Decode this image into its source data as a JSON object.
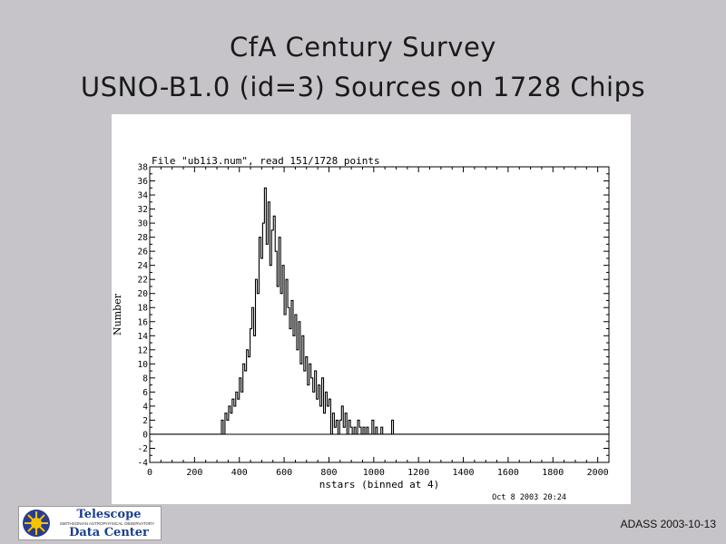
{
  "slide": {
    "title_line1": "CfA Century Survey",
    "title_line2": "USNO-B1.0 (id=3) Sources on 1728 Chips",
    "footer": "ADASS 2003-10-13"
  },
  "logo": {
    "line1": "Telescope",
    "line2": "SMITHSONIAN ASTROPHYSICAL OBSERVATORY",
    "line3": "Data Center",
    "icon": "sun-logo-icon"
  },
  "chart_data": {
    "type": "line",
    "style": "step histogram",
    "title": "File \"ub1i3.num\", read 151/1728 points",
    "xlabel": "nstars (binned at 4)",
    "ylabel": "Number",
    "timestamp": "Oct  8 2003 20:24",
    "xlim": [
      0,
      2050
    ],
    "ylim": [
      -4,
      38
    ],
    "xticks": [
      0,
      200,
      400,
      600,
      800,
      1000,
      1200,
      1400,
      1600,
      1800,
      2000
    ],
    "yticks": [
      -4,
      -2,
      0,
      2,
      4,
      6,
      8,
      10,
      12,
      14,
      16,
      18,
      20,
      22,
      24,
      26,
      28,
      30,
      32,
      34,
      36,
      38
    ],
    "bin_width": 4,
    "series": [
      {
        "x": [
          0,
          320,
          328,
          336,
          344,
          352,
          360,
          368,
          376,
          384,
          392,
          400,
          408,
          416,
          424,
          432,
          440,
          448,
          456,
          464,
          472,
          480,
          488,
          496,
          504,
          512,
          520,
          528,
          536,
          544,
          552,
          560,
          568,
          576,
          584,
          592,
          600,
          608,
          616,
          624,
          632,
          640,
          648,
          656,
          664,
          672,
          680,
          688,
          696,
          704,
          712,
          720,
          728,
          736,
          744,
          752,
          760,
          768,
          776,
          784,
          792,
          800,
          808,
          816,
          824,
          832,
          840,
          848,
          856,
          864,
          872,
          880,
          888,
          896,
          904,
          912,
          920,
          928,
          936,
          944,
          952,
          960,
          968,
          976,
          984,
          992,
          1000,
          1008,
          1016,
          1024,
          1032,
          1040,
          1048,
          1056,
          1064,
          1072,
          1080,
          1088,
          1096,
          1104,
          2050
        ],
        "y": [
          0,
          2,
          0,
          3,
          2,
          4,
          3,
          5,
          4,
          6,
          5,
          8,
          6,
          10,
          9,
          12,
          11,
          15,
          18,
          14,
          22,
          20,
          28,
          25,
          30,
          35,
          27,
          33,
          24,
          29,
          31,
          26,
          21,
          28,
          20,
          24,
          17,
          22,
          18,
          15,
          19,
          14,
          17,
          12,
          16,
          10,
          14,
          9,
          11,
          7,
          10,
          8,
          6,
          9,
          5,
          7,
          4,
          8,
          3,
          6,
          4,
          5,
          0,
          3,
          1,
          2,
          0,
          2,
          4,
          1,
          3,
          0,
          2,
          1,
          0,
          1,
          0,
          2,
          1,
          0,
          1,
          0,
          1,
          0,
          0,
          2,
          0,
          1,
          0,
          0,
          1,
          0,
          0,
          0,
          0,
          0,
          2,
          0,
          0,
          0,
          0
        ]
      }
    ]
  }
}
